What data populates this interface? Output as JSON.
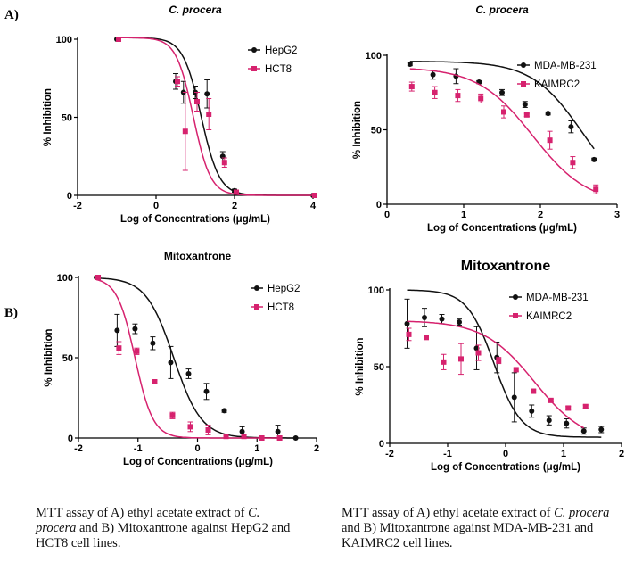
{
  "row_labels": {
    "a": "A)",
    "b": "B)"
  },
  "captions": [
    {
      "pre": "MTT assay of A) ethyl acetate extract of ",
      "em": "C. procera",
      "post": " and B) Mitoxantrone against HepG2 and HCT8 cell lines."
    },
    {
      "pre": "MTT assay of A) ethyl acetate extract of ",
      "em": "C. procera",
      "post": " and B) Mitoxantrone against MDA-MB-231 and KAIMRC2 cell lines."
    }
  ],
  "colors": {
    "black_series": "#111111",
    "pink_series": "#d6226e"
  },
  "chart_data": [
    {
      "type": "scatter",
      "title": "C. procera",
      "xlabel": "Log of Concentrations (μg/mL)",
      "ylabel": "% Inhibition",
      "xlim": [
        -2,
        4
      ],
      "ylim": [
        0,
        100
      ],
      "xticks": [
        -2,
        0,
        2,
        4
      ],
      "yticks": [
        0,
        50,
        100
      ],
      "legend": "top-right",
      "series": [
        {
          "name": "HepG2",
          "marker": "circle",
          "color": "#111111",
          "points": [
            [
              -1.0,
              100,
              0
            ],
            [
              0.5,
              73,
              5
            ],
            [
              0.7,
              66,
              7
            ],
            [
              1.0,
              66,
              4
            ],
            [
              1.3,
              65,
              9
            ],
            [
              1.7,
              25,
              3
            ],
            [
              2.0,
              3,
              1
            ],
            [
              4.0,
              0,
              0
            ]
          ],
          "fit": {
            "top": 101,
            "bottom": 0,
            "ec50": 1.15,
            "slope": 0.85
          }
        },
        {
          "name": "HCT8",
          "marker": "square",
          "color": "#d6226e",
          "points": [
            [
              -1.0,
              100,
              0
            ],
            [
              0.5,
              73,
              3
            ],
            [
              0.7,
              41,
              25
            ],
            [
              1.0,
              60,
              6
            ],
            [
              1.3,
              52,
              10
            ],
            [
              1.7,
              21,
              3
            ],
            [
              2.0,
              2,
              1
            ],
            [
              4.0,
              0,
              0
            ]
          ],
          "fit": {
            "top": 101,
            "bottom": 0,
            "ec50": 0.95,
            "slope": 0.9
          }
        }
      ]
    },
    {
      "type": "scatter",
      "title": "C. procera",
      "xlabel": "Log of Concentrations (μg/mL)",
      "ylabel": "% Inhibition",
      "xlim": [
        0,
        3
      ],
      "ylim": [
        0,
        100
      ],
      "xticks": [
        0,
        1,
        2,
        3
      ],
      "yticks": [
        0,
        50,
        100
      ],
      "legend": "top-right",
      "series": [
        {
          "name": "MDA-MB-231",
          "marker": "circle",
          "color": "#111111",
          "points": [
            [
              0.3,
              94,
              1
            ],
            [
              0.6,
              87,
              3
            ],
            [
              0.9,
              86,
              5
            ],
            [
              1.2,
              82,
              1
            ],
            [
              1.5,
              75,
              2
            ],
            [
              1.8,
              67,
              2
            ],
            [
              2.1,
              61,
              1
            ],
            [
              2.4,
              52,
              4
            ],
            [
              2.7,
              30,
              1
            ]
          ],
          "fit": {
            "top": 96,
            "bottom": 0,
            "ec50": 2.55,
            "slope": 0.6
          }
        },
        {
          "name": "KAIMRC2",
          "marker": "square",
          "color": "#d6226e",
          "points": [
            [
              0.3,
              79,
              3
            ],
            [
              0.6,
              75,
              4
            ],
            [
              0.9,
              73,
              4
            ],
            [
              1.2,
              71,
              3
            ],
            [
              1.5,
              62,
              4
            ],
            [
              1.8,
              60,
              1
            ],
            [
              2.1,
              43,
              6
            ],
            [
              2.4,
              28,
              4
            ],
            [
              2.7,
              10,
              3
            ]
          ],
          "fit": {
            "top": 92,
            "bottom": 0,
            "ec50": 1.9,
            "slope": 0.55
          }
        }
      ]
    },
    {
      "type": "scatter",
      "title": "Mitoxantrone",
      "xlabel": "Log of Concentrations (μg/mL)",
      "ylabel": "% Inhibition",
      "xlim": [
        -2,
        2
      ],
      "ylim": [
        0,
        100
      ],
      "xticks": [
        -2,
        -1,
        0,
        1,
        2
      ],
      "yticks": [
        0,
        50,
        100
      ],
      "legend": "top-right",
      "series": [
        {
          "name": "HepG2",
          "marker": "circle",
          "color": "#111111",
          "points": [
            [
              -1.7,
              100,
              0
            ],
            [
              -1.35,
              67,
              10
            ],
            [
              -1.05,
              68,
              3
            ],
            [
              -0.75,
              59,
              4
            ],
            [
              -0.45,
              47,
              10
            ],
            [
              -0.15,
              40,
              3
            ],
            [
              0.15,
              29,
              5
            ],
            [
              0.45,
              17,
              1
            ],
            [
              0.75,
              4,
              3
            ],
            [
              1.35,
              4,
              4
            ],
            [
              1.65,
              0,
              0
            ]
          ],
          "fit": {
            "top": 100,
            "bottom": 0,
            "ec50": -0.4,
            "slope": 0.85
          }
        },
        {
          "name": "HCT8",
          "marker": "square",
          "color": "#d6226e",
          "points": [
            [
              -1.7,
              100,
              0
            ],
            [
              -1.35,
              56,
              4
            ],
            [
              -1.05,
              54,
              2
            ],
            [
              -0.75,
              35,
              1
            ],
            [
              -0.45,
              14,
              2
            ],
            [
              -0.15,
              7,
              3
            ],
            [
              0.15,
              5,
              3
            ],
            [
              0.45,
              1,
              1
            ],
            [
              0.75,
              1,
              1
            ],
            [
              1.05,
              0,
              0
            ],
            [
              1.35,
              0,
              0
            ]
          ],
          "fit": {
            "top": 100,
            "bottom": 0,
            "ec50": -1.05,
            "slope": 1.3
          }
        }
      ]
    },
    {
      "type": "scatter",
      "title": "Mitoxantrone",
      "xlabel": "Log of Concentrations (μg/mL)",
      "ylabel": "% Inhibition",
      "xlim": [
        -2,
        2
      ],
      "ylim": [
        0,
        100
      ],
      "xticks": [
        -2,
        -1,
        0,
        1,
        2
      ],
      "yticks": [
        0,
        50,
        100
      ],
      "legend": "top-right",
      "series": [
        {
          "name": "MDA-MB-231",
          "marker": "circle",
          "color": "#111111",
          "points": [
            [
              -1.7,
              78,
              16
            ],
            [
              -1.4,
              82,
              6
            ],
            [
              -1.1,
              81,
              3
            ],
            [
              -0.8,
              79,
              2
            ],
            [
              -0.5,
              62,
              14
            ],
            [
              -0.15,
              56,
              10
            ],
            [
              0.15,
              30,
              16
            ],
            [
              0.45,
              21,
              4
            ],
            [
              0.75,
              15,
              3
            ],
            [
              1.05,
              13,
              3
            ],
            [
              1.35,
              8,
              2
            ],
            [
              1.65,
              9,
              2
            ]
          ],
          "fit": {
            "top": 100,
            "bottom": 4,
            "ec50": -0.2,
            "slope": 0.85
          }
        },
        {
          "name": "KAIMRC2",
          "marker": "square",
          "color": "#d6226e",
          "points": [
            [
              -1.7,
              71,
              4
            ],
            [
              -1.4,
              69,
              1
            ],
            [
              -1.1,
              53,
              5
            ],
            [
              -0.8,
              55,
              10
            ],
            [
              -0.5,
              59,
              5
            ],
            [
              -0.15,
              54,
              2
            ],
            [
              0.15,
              48,
              1
            ],
            [
              0.45,
              34,
              1
            ],
            [
              0.75,
              28,
              1
            ],
            [
              1.05,
              23,
              1
            ],
            [
              1.35,
              24,
              1
            ]
          ],
          "fit": {
            "top": 80,
            "bottom": 0,
            "ec50": 0.5,
            "slope": 0.45
          }
        }
      ]
    }
  ]
}
